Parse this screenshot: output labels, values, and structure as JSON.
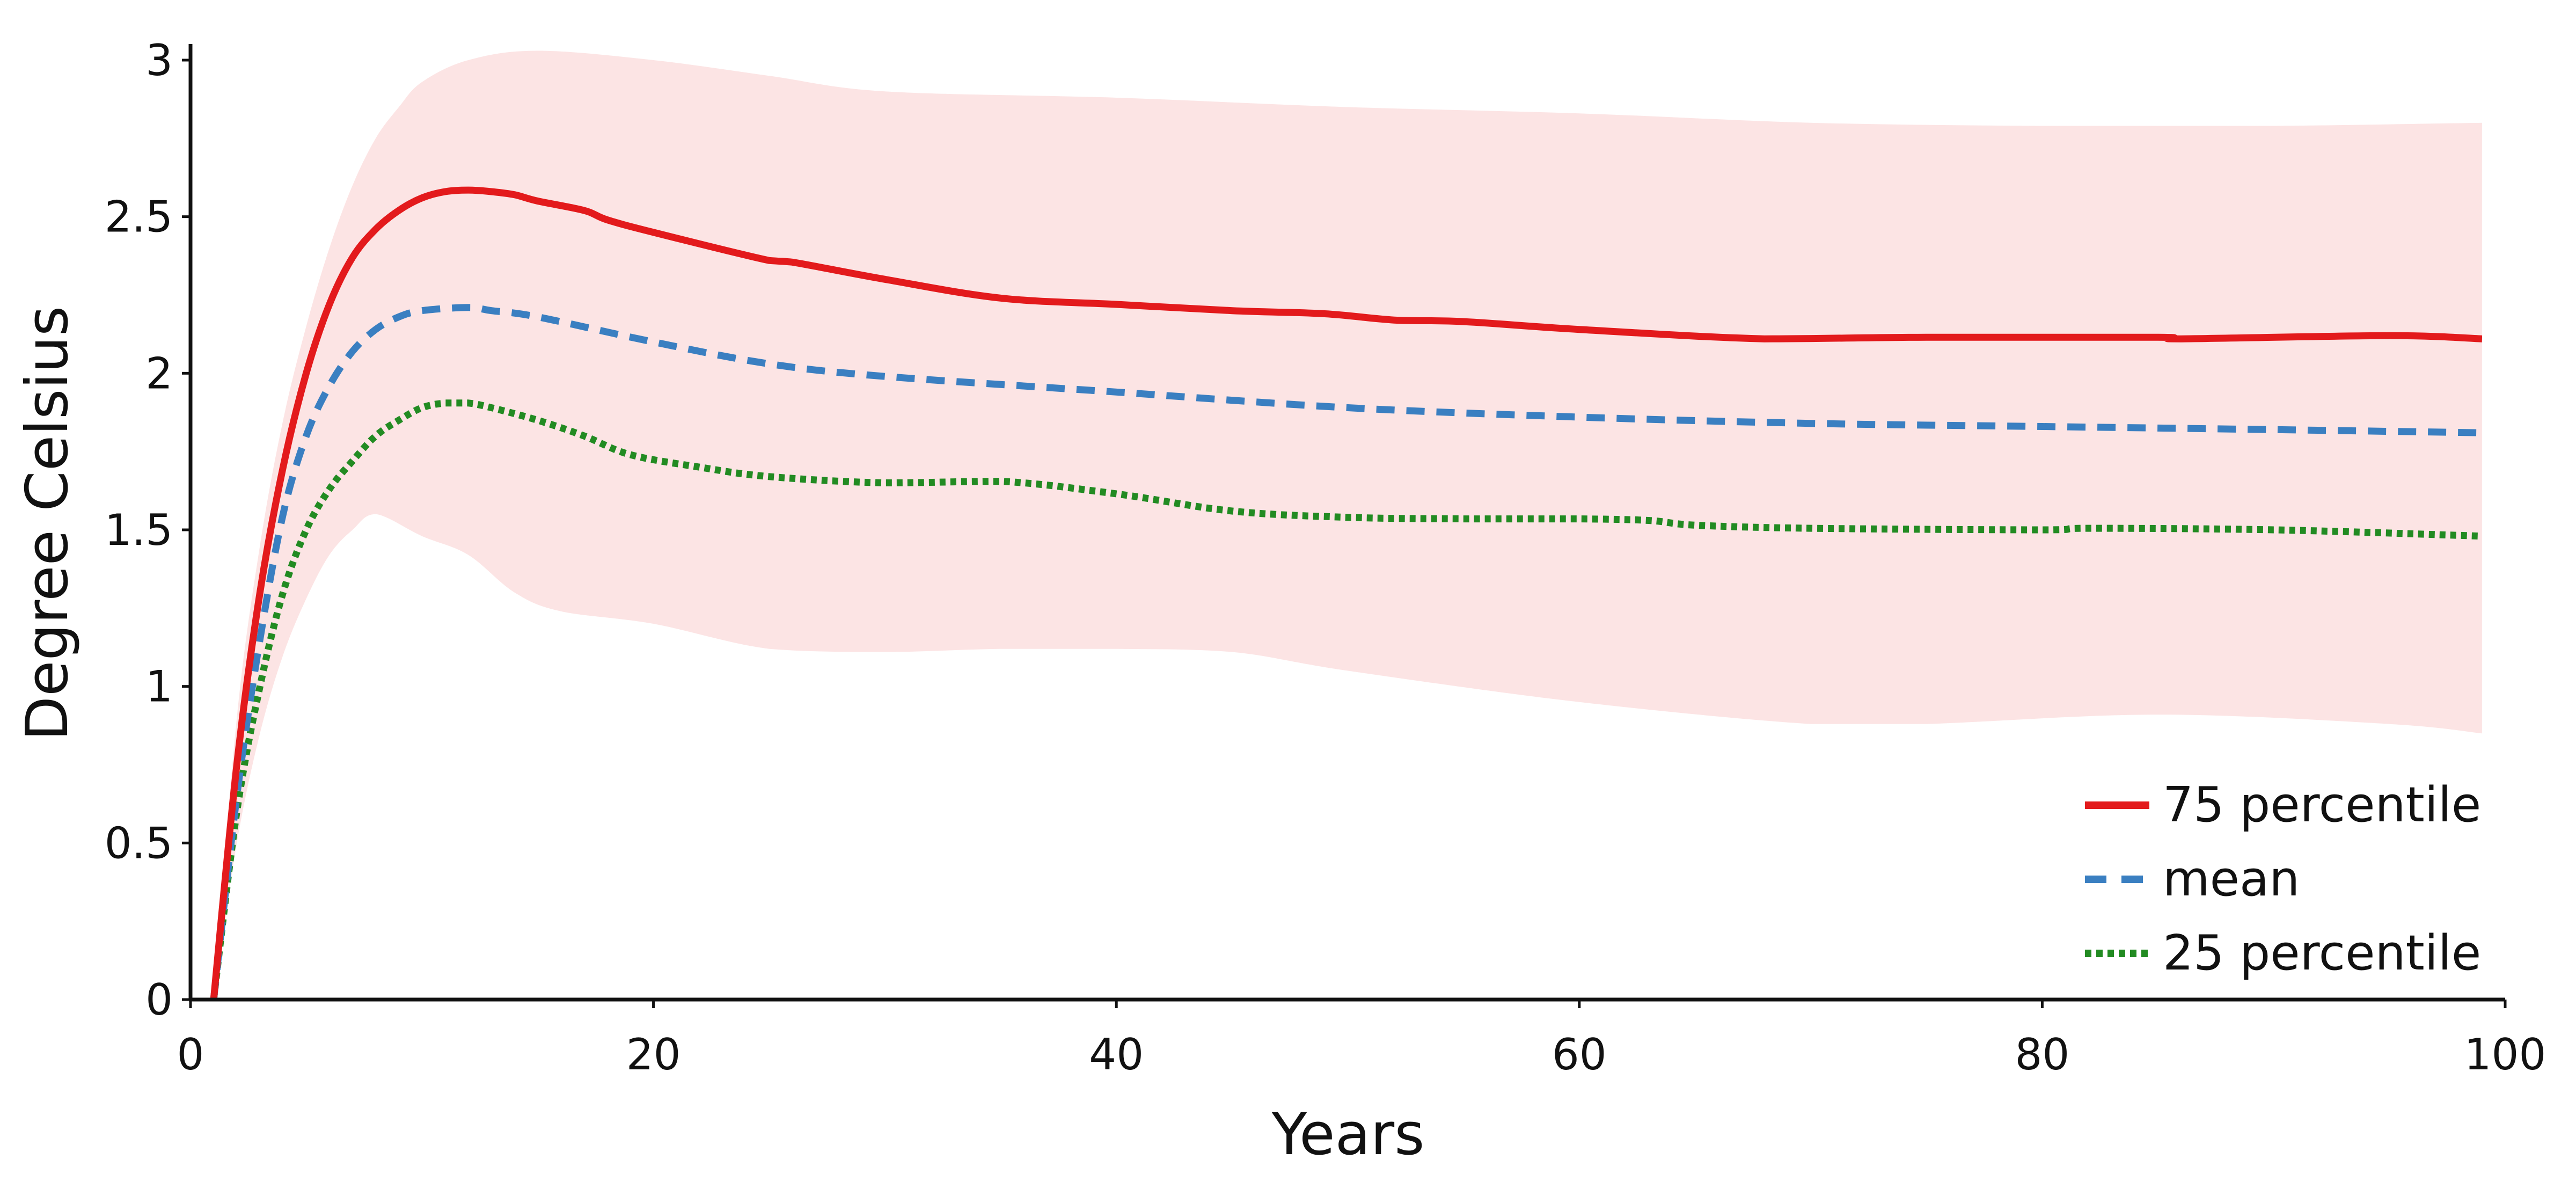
{
  "chart_data": {
    "type": "line",
    "title": "",
    "xlabel": "Years",
    "ylabel": "Degree Celsius",
    "xlim": [
      0,
      100
    ],
    "ylim": [
      0,
      3
    ],
    "x_ticks": [
      0,
      20,
      40,
      60,
      80,
      100
    ],
    "x_tick_labels": [
      "0",
      "20",
      "40",
      "60",
      "80",
      "100"
    ],
    "y_ticks": [
      0,
      0.5,
      1,
      1.5,
      2,
      2.5,
      3
    ],
    "y_tick_labels": [
      "0",
      "0.5",
      "1",
      "1.5",
      "2",
      "2.5",
      "3"
    ],
    "grid": false,
    "legend_position": "bottom-right",
    "band": {
      "color": "#fce4e4",
      "upper": [
        [
          1,
          0
        ],
        [
          2,
          0.9
        ],
        [
          3,
          1.45
        ],
        [
          4,
          1.85
        ],
        [
          5,
          2.15
        ],
        [
          6,
          2.4
        ],
        [
          7,
          2.6
        ],
        [
          8,
          2.75
        ],
        [
          9,
          2.85
        ],
        [
          10,
          2.93
        ],
        [
          12,
          3.0
        ],
        [
          15,
          3.03
        ],
        [
          20,
          3.0
        ],
        [
          25,
          2.95
        ],
        [
          30,
          2.9
        ],
        [
          40,
          2.88
        ],
        [
          50,
          2.85
        ],
        [
          60,
          2.83
        ],
        [
          70,
          2.8
        ],
        [
          80,
          2.79
        ],
        [
          90,
          2.79
        ],
        [
          99,
          2.8
        ]
      ],
      "lower": [
        [
          1,
          0
        ],
        [
          2,
          0.5
        ],
        [
          3,
          0.85
        ],
        [
          4,
          1.1
        ],
        [
          5,
          1.28
        ],
        [
          6,
          1.42
        ],
        [
          7,
          1.5
        ],
        [
          8,
          1.55
        ],
        [
          10,
          1.48
        ],
        [
          12,
          1.42
        ],
        [
          14,
          1.3
        ],
        [
          16,
          1.24
        ],
        [
          20,
          1.2
        ],
        [
          25,
          1.12
        ],
        [
          30,
          1.11
        ],
        [
          35,
          1.12
        ],
        [
          40,
          1.12
        ],
        [
          45,
          1.11
        ],
        [
          50,
          1.05
        ],
        [
          60,
          0.95
        ],
        [
          70,
          0.88
        ],
        [
          75,
          0.88
        ],
        [
          85,
          0.91
        ],
        [
          95,
          0.88
        ],
        [
          99,
          0.85
        ]
      ]
    },
    "series": [
      {
        "name": "75 percentile",
        "color": "#e31a1c",
        "dash": "solid",
        "points": [
          [
            1,
            0
          ],
          [
            2,
            0.75
          ],
          [
            3,
            1.3
          ],
          [
            4,
            1.7
          ],
          [
            5,
            2.0
          ],
          [
            6,
            2.22
          ],
          [
            7,
            2.37
          ],
          [
            8,
            2.46
          ],
          [
            9,
            2.52
          ],
          [
            10,
            2.56
          ],
          [
            11,
            2.58
          ],
          [
            12,
            2.585
          ],
          [
            13,
            2.58
          ],
          [
            14,
            2.57
          ],
          [
            15,
            2.55
          ],
          [
            17,
            2.52
          ],
          [
            18,
            2.49
          ],
          [
            20,
            2.45
          ],
          [
            25,
            2.36
          ],
          [
            26,
            2.355
          ],
          [
            30,
            2.3
          ],
          [
            35,
            2.24
          ],
          [
            40,
            2.22
          ],
          [
            45,
            2.2
          ],
          [
            49,
            2.19
          ],
          [
            52,
            2.17
          ],
          [
            55,
            2.165
          ],
          [
            60,
            2.14
          ],
          [
            68,
            2.11
          ],
          [
            75,
            2.115
          ],
          [
            85,
            2.115
          ],
          [
            86,
            2.11
          ],
          [
            95,
            2.12
          ],
          [
            99,
            2.11
          ]
        ]
      },
      {
        "name": "mean",
        "color": "#3a7fc1",
        "dash": "dashed",
        "points": [
          [
            1,
            0
          ],
          [
            2,
            0.65
          ],
          [
            3,
            1.15
          ],
          [
            4,
            1.55
          ],
          [
            5,
            1.8
          ],
          [
            6,
            1.96
          ],
          [
            7,
            2.07
          ],
          [
            8,
            2.14
          ],
          [
            9,
            2.18
          ],
          [
            10,
            2.2
          ],
          [
            12,
            2.21
          ],
          [
            13,
            2.2
          ],
          [
            15,
            2.18
          ],
          [
            20,
            2.1
          ],
          [
            25,
            2.03
          ],
          [
            30,
            1.99
          ],
          [
            40,
            1.94
          ],
          [
            50,
            1.89
          ],
          [
            60,
            1.86
          ],
          [
            70,
            1.84
          ],
          [
            80,
            1.83
          ],
          [
            90,
            1.82
          ],
          [
            99,
            1.81
          ]
        ]
      },
      {
        "name": "25 percentile",
        "color": "#228b22",
        "dash": "dotted",
        "points": [
          [
            1,
            0
          ],
          [
            2,
            0.6
          ],
          [
            3,
            1.0
          ],
          [
            4,
            1.3
          ],
          [
            5,
            1.5
          ],
          [
            6,
            1.63
          ],
          [
            7,
            1.72
          ],
          [
            8,
            1.8
          ],
          [
            9,
            1.85
          ],
          [
            10,
            1.89
          ],
          [
            11,
            1.905
          ],
          [
            12,
            1.905
          ],
          [
            13,
            1.89
          ],
          [
            15,
            1.85
          ],
          [
            17,
            1.8
          ],
          [
            19,
            1.74
          ],
          [
            22,
            1.7
          ],
          [
            25,
            1.67
          ],
          [
            30,
            1.65
          ],
          [
            35,
            1.655
          ],
          [
            40,
            1.615
          ],
          [
            45,
            1.56
          ],
          [
            50,
            1.54
          ],
          [
            55,
            1.535
          ],
          [
            60,
            1.535
          ],
          [
            63,
            1.53
          ],
          [
            65,
            1.515
          ],
          [
            70,
            1.505
          ],
          [
            80,
            1.5
          ],
          [
            82,
            1.505
          ],
          [
            90,
            1.5
          ],
          [
            99,
            1.48
          ]
        ]
      }
    ]
  }
}
